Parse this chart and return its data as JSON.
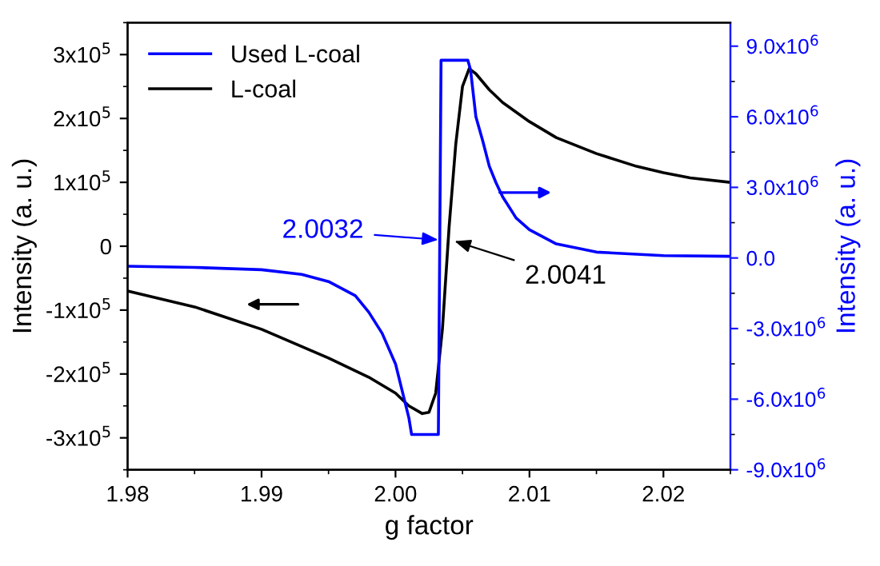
{
  "chart_data": {
    "type": "line",
    "xlabel": "g factor",
    "ylabel": "Intensity (a. u.)",
    "y2label": "Intensity (a. u.)",
    "legend": "top left",
    "grid": false,
    "marker": "none",
    "line_style": "solid",
    "xlim": [
      1.98,
      2.025
    ],
    "xticks": [
      1.98,
      1.99,
      {
        "value": 2.0,
        "label": "2.00"
      },
      2.01,
      2.02
    ],
    "ylim": [
      -350000,
      350000
    ],
    "yticks": [
      {
        "value": -300000,
        "label": "-3x10$^{5}$"
      },
      {
        "value": -200000,
        "label": "-2x10$^{5}$"
      },
      {
        "value": -100000,
        "label": "-1x10$^{5}$"
      },
      {
        "value": 0,
        "label": "0"
      },
      {
        "value": 100000,
        "label": "1x10$^{5}$"
      },
      {
        "value": 200000,
        "label": "2x10$^{5}$"
      },
      {
        "value": 300000,
        "label": "3x10$^{5}$"
      }
    ],
    "y2lim": [
      -9000000,
      10000000
    ],
    "y2ticks": [
      {
        "value": -9000000,
        "label": "-9.0x10$^{6}$"
      },
      {
        "value": -6000000,
        "label": "-6.0x10$^{6}$"
      },
      {
        "value": -3000000,
        "label": "-3.0x10$^{6}$"
      },
      {
        "value": 0,
        "label": "0.0"
      },
      {
        "value": 3000000,
        "label": "3.0x10$^{6}$"
      },
      {
        "value": 6000000,
        "label": "6.0x10$^{6}$"
      },
      {
        "value": 9000000,
        "label": "9.0x10$^{6}$"
      }
    ],
    "series": [
      {
        "name": "Used L-coal",
        "color": "#0000ff",
        "axis": "y2",
        "x": [
          1.98,
          1.985,
          1.99,
          1.993,
          1.995,
          1.997,
          1.998,
          1.999,
          2.0,
          2.001,
          2.0012,
          2.0032,
          2.0034,
          2.0054,
          2.0056,
          2.006,
          2.0065,
          2.007,
          2.0075,
          2.008,
          2.009,
          2.01,
          2.012,
          2.015,
          2.02,
          2.025
        ],
        "values": [
          -350000,
          -400000,
          -500000,
          -700000,
          -1000000,
          -1600000,
          -2300000,
          -3200000,
          -4500000,
          -6800000,
          -7500000,
          -7500000,
          8400000,
          8400000,
          8000000,
          6000000,
          5000000,
          3900000,
          3200000,
          2600000,
          1700000,
          1200000,
          600000,
          250000,
          100000,
          70000
        ]
      },
      {
        "name": "L-coal",
        "color": "#000000",
        "x": [
          1.98,
          1.985,
          1.99,
          1.995,
          1.998,
          2.0,
          2.001,
          2.002,
          2.0025,
          2.003,
          2.0035,
          2.004,
          2.0045,
          2.005,
          2.0055,
          2.006,
          2.007,
          2.008,
          2.01,
          2.012,
          2.015,
          2.018,
          2.02,
          2.022,
          2.025
        ],
        "values": [
          -70000,
          -95000,
          -130000,
          -175000,
          -205000,
          -230000,
          -250000,
          -262000,
          -260000,
          -230000,
          -130000,
          30000,
          160000,
          250000,
          278000,
          270000,
          245000,
          225000,
          195000,
          170000,
          145000,
          125000,
          115000,
          107000,
          100000
        ]
      }
    ],
    "annotations": [
      {
        "text": "2.0032",
        "x": 2.0032,
        "y": 10000
      },
      {
        "text": "2.0041",
        "x": 2.0044,
        "y": 8000
      }
    ]
  }
}
